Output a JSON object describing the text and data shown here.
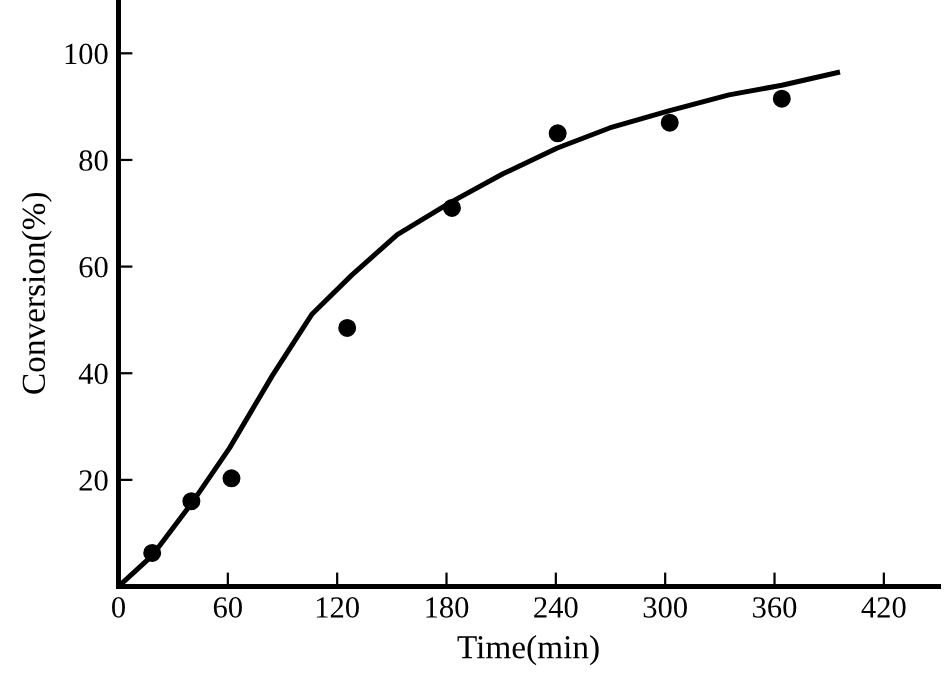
{
  "chart_data": {
    "type": "scatter",
    "xlabel": "Time(min)",
    "ylabel": "Conversion(%)",
    "xlim": [
      0,
      450
    ],
    "ylim": [
      0,
      110
    ],
    "xticks": [
      0,
      60,
      120,
      180,
      240,
      300,
      360,
      420
    ],
    "yticks": [
      20,
      40,
      60,
      80,
      100
    ],
    "grid": false,
    "legend": false,
    "marker": "circle",
    "series": [
      {
        "color": "#000000",
        "x": [
          18.5,
          40,
          62,
          125.5,
          183,
          241,
          302.5,
          364
        ],
        "values": [
          6.3,
          16,
          20.3,
          48.5,
          71,
          85,
          87,
          91.5
        ]
      },
      {
        "type": "line",
        "color": "#000000",
        "line_style": "solid",
        "marker": "none",
        "x": [
          0,
          8.3,
          18.5,
          41,
          61,
          84.5,
          106,
          128,
          153,
          182,
          211,
          240.5,
          269.5,
          302,
          335,
          364,
          394.6
        ],
        "values": [
          0,
          2.6,
          5.8,
          16,
          26,
          39.6,
          51,
          58.4,
          66,
          72,
          77.4,
          82.2,
          86,
          89.2,
          92.2,
          94,
          96.4
        ]
      }
    ]
  }
}
